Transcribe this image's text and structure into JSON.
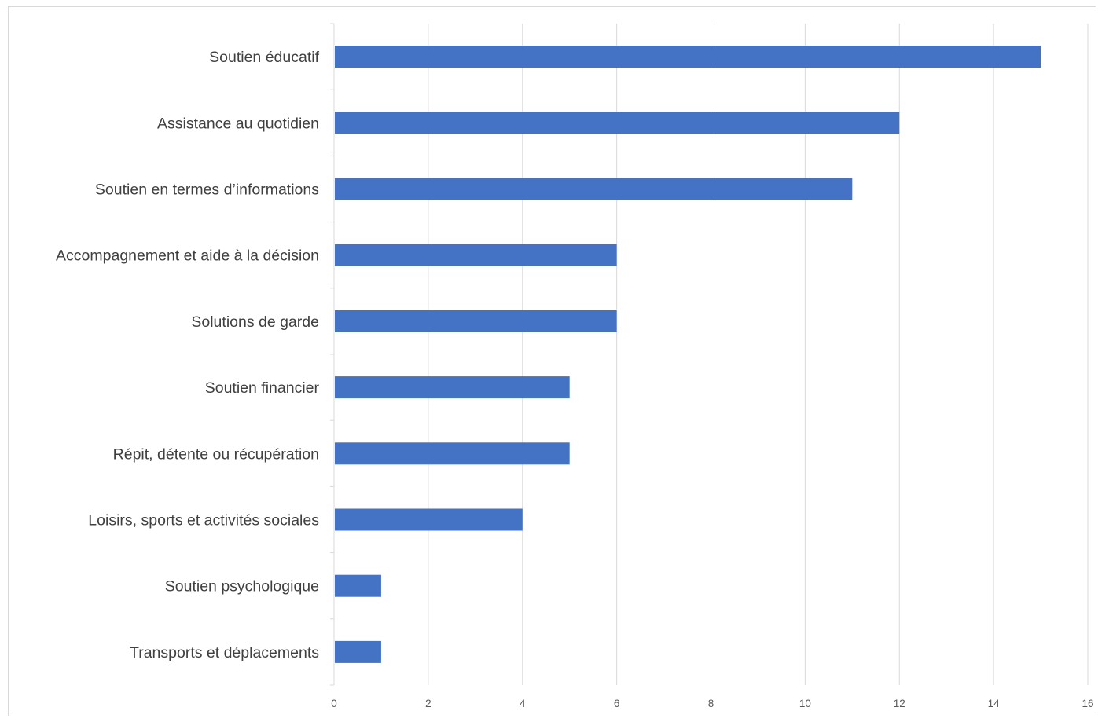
{
  "chart_data": {
    "type": "bar",
    "orientation": "horizontal",
    "categories": [
      "Soutien éducatif",
      "Assistance au quotidien",
      "Soutien en termes d’informations",
      "Accompagnement et aide à la décision",
      "Solutions de garde",
      "Soutien financier",
      "Répit, détente ou récupération",
      "Loisirs, sports et activités sociales",
      "Soutien psychologique",
      "Transports et déplacements"
    ],
    "values": [
      15,
      12,
      11,
      6,
      6,
      5,
      5,
      4,
      1,
      1
    ],
    "xlim": [
      0,
      16
    ],
    "xticks": [
      "0",
      "2",
      "4",
      "6",
      "8",
      "10",
      "12",
      "14",
      "16"
    ],
    "title": "",
    "xlabel": "",
    "ylabel": "",
    "grid": "vertical",
    "legend": "none",
    "bar_color": "#4472c4",
    "grid_color": "#d9d9d9"
  }
}
